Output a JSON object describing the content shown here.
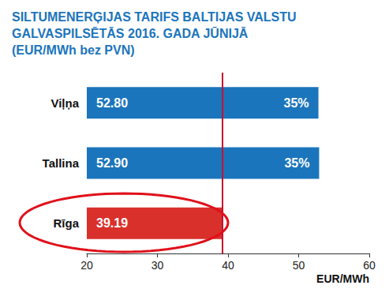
{
  "chart_data": {
    "type": "bar",
    "orientation": "horizontal",
    "title": "SILTUMENERĢIJAS TARIFS BALTIJAS VALSTU\nGALVASPILSĒTĀS 2016. GADA JŪNIJĀ\n(EUR/MWh bez PVN)",
    "x_label": "EUR/MWh",
    "categories": [
      "Viļņa",
      "Tallina",
      "Rīga"
    ],
    "values": [
      52.8,
      52.9,
      39.19
    ],
    "value_labels": [
      "52.80",
      "52.90",
      "39.19"
    ],
    "annotations": [
      "35%",
      "35%",
      null
    ],
    "colors": [
      "#1b75bc",
      "#1b75bc",
      "#d9302b"
    ],
    "reference_line": {
      "value": 39.19,
      "color": "#c8102e"
    },
    "xlim": [
      20,
      60
    ],
    "xticks": [
      20,
      30,
      40,
      50,
      60
    ],
    "grid": false,
    "data_labels": true
  }
}
